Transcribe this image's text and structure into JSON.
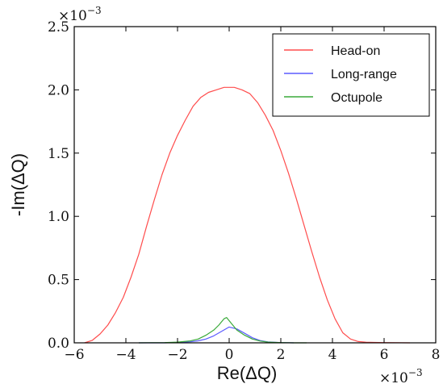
{
  "chart_data": {
    "type": "line",
    "xlabel": "Re(ΔQ)",
    "ylabel": "-Im(ΔQ)",
    "xlim": [
      -6,
      8
    ],
    "ylim": [
      0,
      2.5
    ],
    "xticks": [
      "−6",
      "−4",
      "−2",
      "0",
      "2",
      "4",
      "6",
      "8"
    ],
    "yticks": [
      "0.0",
      "0.5",
      "1.0",
      "1.5",
      "2.0",
      "2.5"
    ],
    "x_multiplier": {
      "base": "×10",
      "exp": "−3"
    },
    "y_multiplier": {
      "base": "×10",
      "exp": "−3"
    },
    "legend_position": "top-right",
    "grid": false,
    "series": [
      {
        "name": "Head-on",
        "color": "#ff4d4d",
        "x": [
          -5.6,
          -5.3,
          -5.0,
          -4.7,
          -4.4,
          -4.1,
          -3.8,
          -3.5,
          -3.2,
          -2.9,
          -2.6,
          -2.3,
          -2.0,
          -1.7,
          -1.4,
          -1.1,
          -0.8,
          -0.5,
          -0.2,
          0.0,
          0.2,
          0.5,
          0.8,
          1.1,
          1.4,
          1.7,
          2.0,
          2.3,
          2.6,
          2.9,
          3.2,
          3.5,
          3.8,
          4.1,
          4.4,
          4.7,
          5.0,
          5.3,
          5.6,
          6.0,
          7.0
        ],
        "y": [
          0.0,
          0.02,
          0.07,
          0.14,
          0.24,
          0.36,
          0.52,
          0.7,
          0.92,
          1.13,
          1.33,
          1.5,
          1.64,
          1.76,
          1.87,
          1.94,
          1.98,
          2.0,
          2.02,
          2.02,
          2.02,
          2.0,
          1.97,
          1.9,
          1.8,
          1.68,
          1.52,
          1.34,
          1.14,
          0.93,
          0.72,
          0.52,
          0.34,
          0.19,
          0.08,
          0.03,
          0.01,
          0.005,
          0.003,
          0.002,
          0.0
        ]
      },
      {
        "name": "Long-range",
        "color": "#5b5bff",
        "x": [
          -3.5,
          -2.5,
          -2.0,
          -1.5,
          -1.2,
          -0.9,
          -0.6,
          -0.3,
          0.0,
          0.3,
          0.6,
          0.9,
          1.2,
          1.5,
          2.0,
          2.5
        ],
        "y": [
          0.0,
          0.0,
          0.003,
          0.008,
          0.016,
          0.03,
          0.055,
          0.09,
          0.125,
          0.11,
          0.075,
          0.04,
          0.018,
          0.007,
          0.002,
          0.0
        ]
      },
      {
        "name": "Octupole",
        "color": "#3aaa3a",
        "x": [
          -3.5,
          -2.5,
          -2.0,
          -1.5,
          -1.2,
          -0.9,
          -0.6,
          -0.4,
          -0.2,
          -0.1,
          0.1,
          0.3,
          0.6,
          0.9,
          1.2,
          1.5,
          2.0,
          2.5,
          3.0
        ],
        "y": [
          0.0,
          0.002,
          0.006,
          0.015,
          0.03,
          0.06,
          0.1,
          0.14,
          0.19,
          0.2,
          0.15,
          0.1,
          0.06,
          0.03,
          0.014,
          0.006,
          0.002,
          0.0,
          0.0
        ]
      }
    ]
  }
}
